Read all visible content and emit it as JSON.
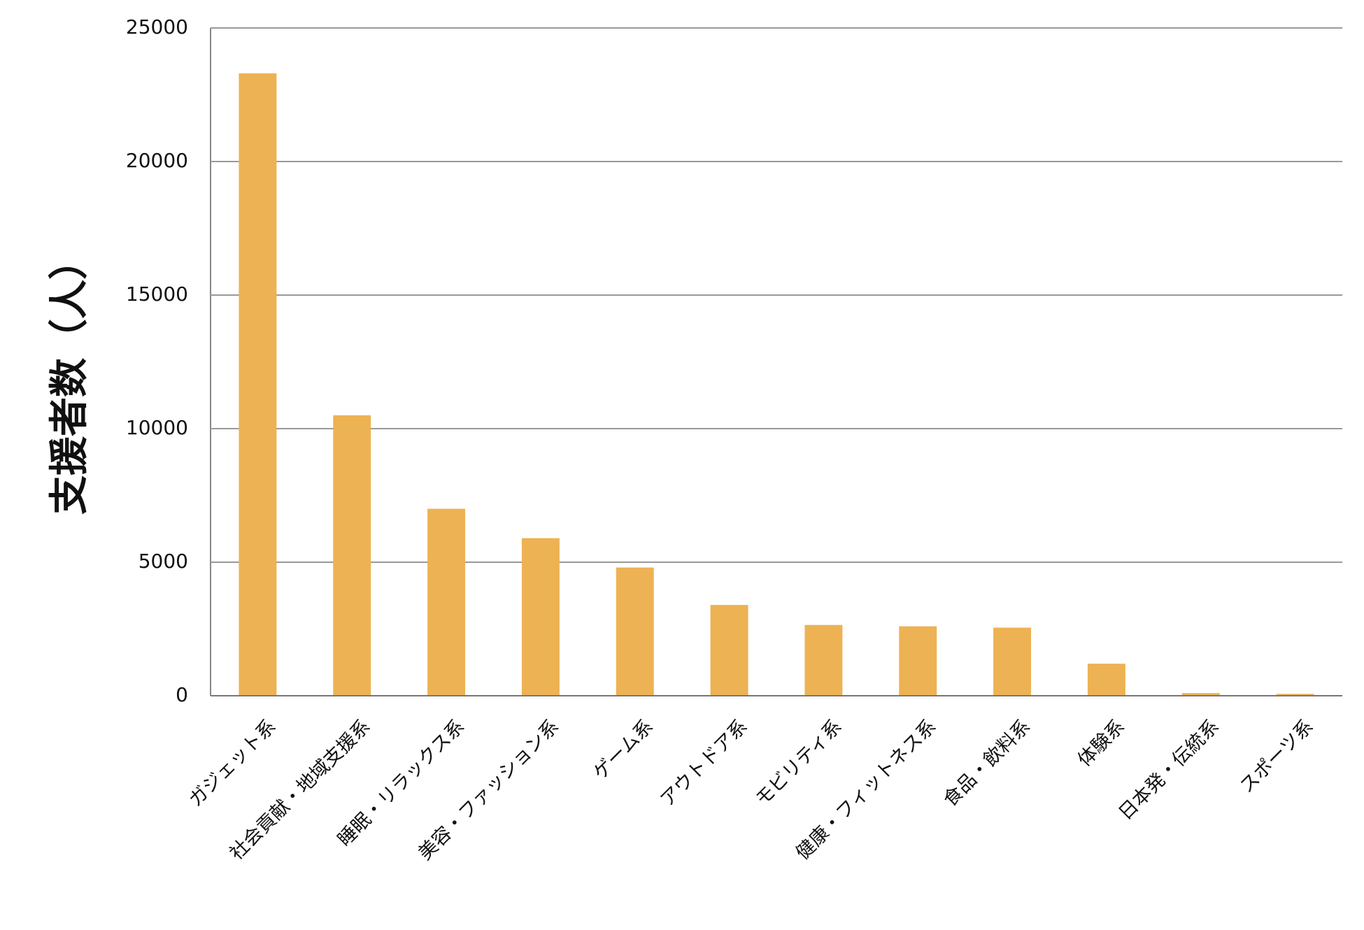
{
  "chart_data": {
    "type": "bar",
    "y_label": "支援者数（人）",
    "categories": [
      "ガジェット系",
      "社会貢献・地域支援系",
      "睡眠・リラックス系",
      "美容・ファッション系",
      "ゲーム系",
      "アウトドア系",
      "モビリティ系",
      "健康・フィットネス系",
      "食品・飲料系",
      "体験系",
      "日本発・伝統系",
      "スポーツ系"
    ],
    "values": [
      23300,
      10500,
      7000,
      5900,
      4800,
      3400,
      2650,
      2600,
      2550,
      1200,
      100,
      70
    ],
    "color": "#edb253",
    "ylim": [
      0,
      25000
    ],
    "yticks": [
      0,
      5000,
      10000,
      15000,
      20000,
      25000
    ],
    "grid": true
  }
}
